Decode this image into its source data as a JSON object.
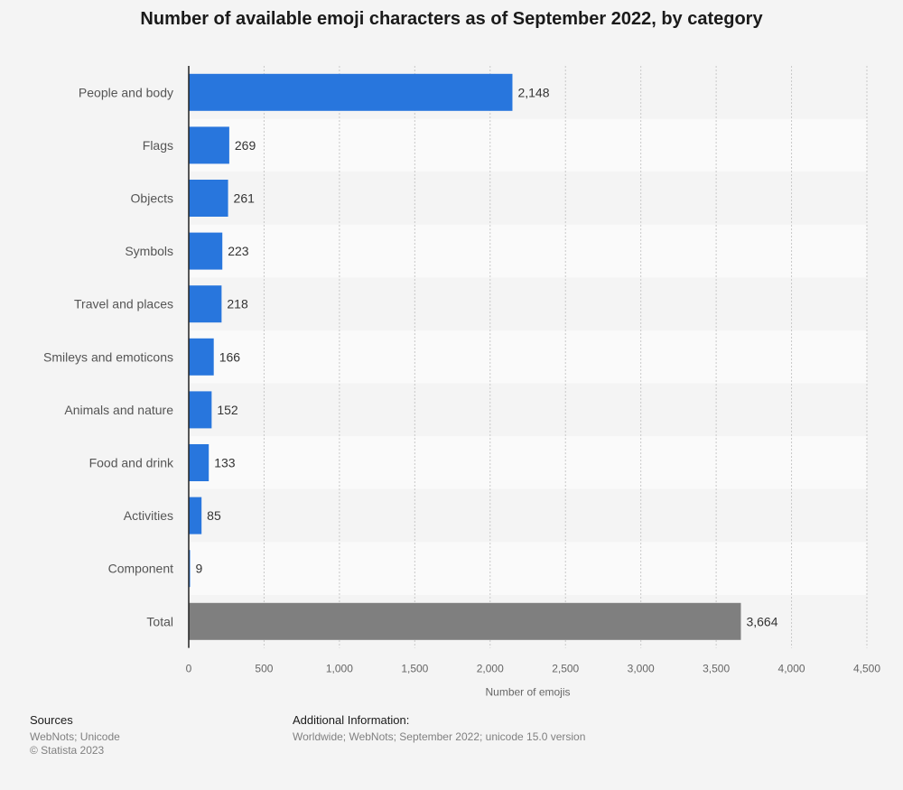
{
  "title": "Number of available emoji characters as of September 2022, by category",
  "chart_data": {
    "type": "bar",
    "orientation": "horizontal",
    "title": "Number of available emoji characters as of September 2022, by category",
    "xlabel": "Number of emojis",
    "ylabel": "",
    "xlim": [
      0,
      4500
    ],
    "ticks": [
      0,
      500,
      1000,
      1500,
      2000,
      2500,
      3000,
      3500,
      4000,
      4500
    ],
    "tick_labels": [
      "0",
      "500",
      "1,000",
      "1,500",
      "2,000",
      "2,500",
      "3,000",
      "3,500",
      "4,000",
      "4,500"
    ],
    "categories": [
      "People and body",
      "Flags",
      "Objects",
      "Symbols",
      "Travel and places",
      "Smileys and emoticons",
      "Animals and nature",
      "Food and drink",
      "Activities",
      "Component",
      "Total"
    ],
    "values": [
      2148,
      269,
      261,
      223,
      218,
      166,
      152,
      133,
      85,
      9,
      3664
    ],
    "value_labels": [
      "2,148",
      "269",
      "261",
      "223",
      "218",
      "166",
      "152",
      "133",
      "85",
      "9",
      "3,664"
    ],
    "bar_colors": [
      "#2876dd",
      "#2876dd",
      "#2876dd",
      "#2876dd",
      "#2876dd",
      "#2876dd",
      "#2876dd",
      "#2876dd",
      "#2876dd",
      "#2876dd",
      "#7f7f7f"
    ],
    "grid": true,
    "legend": "none"
  },
  "footer": {
    "sources_title": "Sources",
    "sources_lines": [
      "WebNots; Unicode",
      "© Statista 2023"
    ],
    "info_title": "Additional Information:",
    "info_lines": [
      "Worldwide; WebNots; September 2022; unicode 15.0 version"
    ]
  }
}
